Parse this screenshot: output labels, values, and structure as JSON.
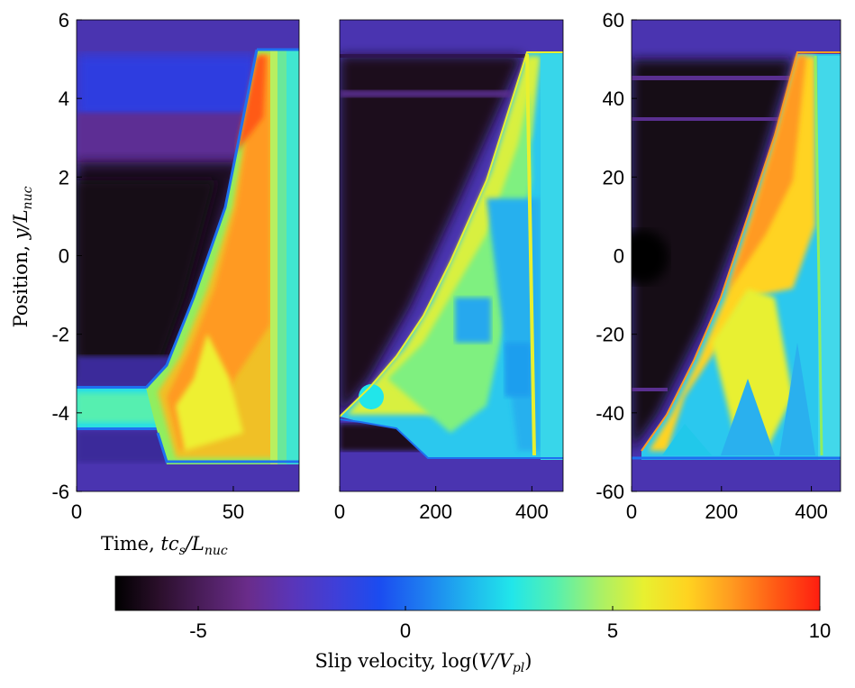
{
  "chart_data": [
    {
      "type": "heatmap",
      "panel": "left",
      "xlim": [
        0,
        71
      ],
      "ylim": [
        -6,
        6
      ],
      "xticks": [
        0,
        50
      ],
      "yticks": [
        -6,
        -4,
        -2,
        0,
        2,
        4,
        6
      ],
      "xlabel": "Time, tc_s/L_nuc",
      "ylabel": "Position, y/L_nuc",
      "rupture_front": {
        "nucleation_time": 25,
        "nucleation_y": [
          -4.4,
          -3.4
        ],
        "up_end": {
          "time": 57,
          "y": 5.3
        },
        "down_end": {
          "time": 29,
          "y": -5.2
        }
      }
    },
    {
      "type": "heatmap",
      "panel": "middle",
      "xlim": [
        0,
        465
      ],
      "ylim": [
        -6,
        6
      ],
      "xticks": [
        0,
        200,
        400
      ],
      "rupture_front": {
        "nucleation_time": 5,
        "nucleation_y": -4.15,
        "up_end": {
          "time": 395,
          "y": 5.2
        },
        "down_end": {
          "time": 185,
          "y": -5.2
        }
      }
    },
    {
      "type": "heatmap",
      "panel": "right",
      "xlim": [
        0,
        465
      ],
      "ylim": [
        -60,
        60
      ],
      "xticks": [
        0,
        200,
        400
      ],
      "yticks": [
        -60,
        -40,
        -20,
        0,
        20,
        40,
        60
      ],
      "rupture_front": {
        "nucleation_time": 20,
        "nucleation_y": -50,
        "up_end": {
          "time": 375,
          "y": 52
        },
        "down_end": {
          "time": 25,
          "y": -52
        }
      }
    }
  ],
  "colorbar": {
    "label": "Slip velocity, log(V/V_pl)",
    "range": [
      -7,
      10
    ],
    "ticks": [
      -5,
      0,
      5,
      10
    ],
    "colormap": [
      "#000000",
      "#2b0f2b",
      "#4b1e5c",
      "#6a2c8a",
      "#5a35b8",
      "#3f3fd8",
      "#1b4cf0",
      "#1e7df0",
      "#1fb4ee",
      "#21e6ea",
      "#55f0b0",
      "#a8f068",
      "#e8f030",
      "#ffd320",
      "#ff9a20",
      "#ff5a15",
      "#ff1e10"
    ]
  },
  "labels": {
    "xlabel_main": "Time, ",
    "xlabel_math": "tc",
    "xlabel_sub": "s",
    "xlabel_slash": "/L",
    "xlabel_sub2": "nuc",
    "ylabel_main": "Position, ",
    "ylabel_math": "y/L",
    "ylabel_sub": "nuc",
    "cb_main": "Slip velocity, log(",
    "cb_math": "V/V",
    "cb_sub": "pl",
    "cb_close": ")"
  }
}
